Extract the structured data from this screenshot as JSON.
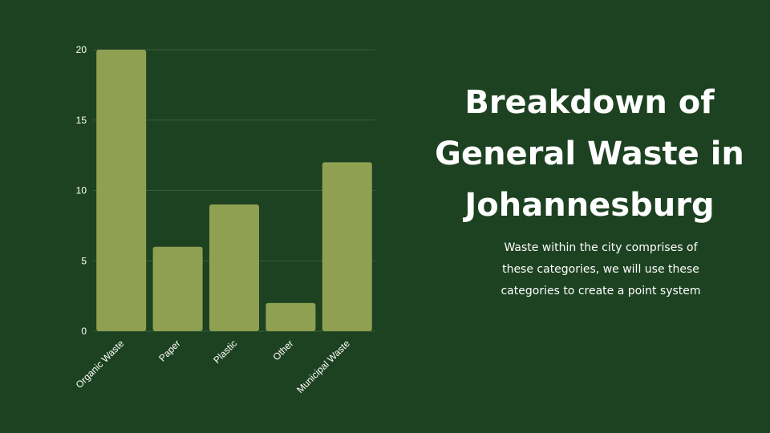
{
  "slide": {
    "title": "Breakdown of\nGeneral Waste in\nJohannesburg",
    "description": "Waste within the city comprises of\nthese categories, we will use these\ncategories to create a point system"
  },
  "colors": {
    "background": "#1d4221",
    "bar": "#8fa052",
    "gridline": "#3a5e3c",
    "text": "#ffffff"
  },
  "chart_data": {
    "type": "bar",
    "categories": [
      "Organic Waste",
      "Paper",
      "Plastic",
      "Other",
      "Municipal Waste"
    ],
    "values": [
      20,
      6,
      9,
      2,
      12
    ],
    "title": "",
    "xlabel": "",
    "ylabel": "",
    "ylim": [
      0,
      20
    ],
    "yticks": [
      0,
      5,
      10,
      15,
      20
    ],
    "grid": true,
    "legend": "none"
  }
}
